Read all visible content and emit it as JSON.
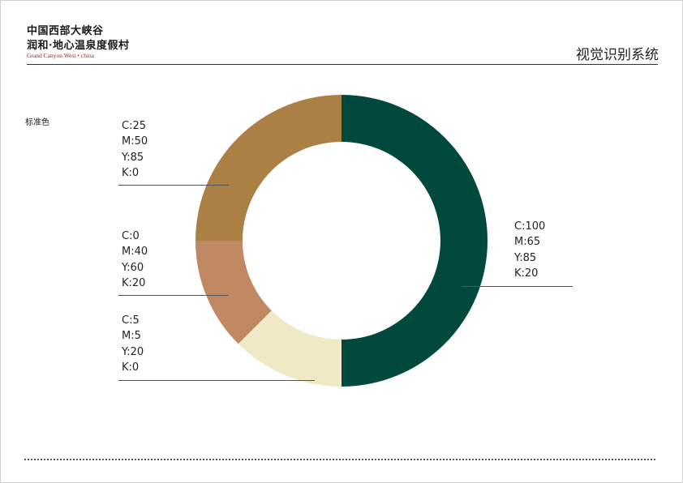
{
  "header": {
    "logo_line1": "中国西部大峡谷",
    "logo_line2": "润和·地心温泉度假村",
    "logo_en": "Grand Canyon West • china",
    "title": "视觉识别系统"
  },
  "section_label": "标准色",
  "colors": {
    "green": "#00493c",
    "gold": "#ab8045",
    "terracotta": "#c08964",
    "cream": "#efe9c6"
  },
  "swatches": [
    {
      "id": "green",
      "percent": 50,
      "lines": [
        "C:100",
        "M:65",
        "Y:85",
        "K:20"
      ]
    },
    {
      "id": "cream",
      "percent": 12.5,
      "lines": [
        "C:5",
        "M:5",
        "Y:20",
        "K:0"
      ]
    },
    {
      "id": "terracotta",
      "percent": 12.5,
      "lines": [
        "C:0",
        "M:40",
        "Y:60",
        "K:20"
      ]
    },
    {
      "id": "gold",
      "percent": 25,
      "lines": [
        "C:25",
        "M:50",
        "Y:85",
        "K:0"
      ]
    }
  ]
}
